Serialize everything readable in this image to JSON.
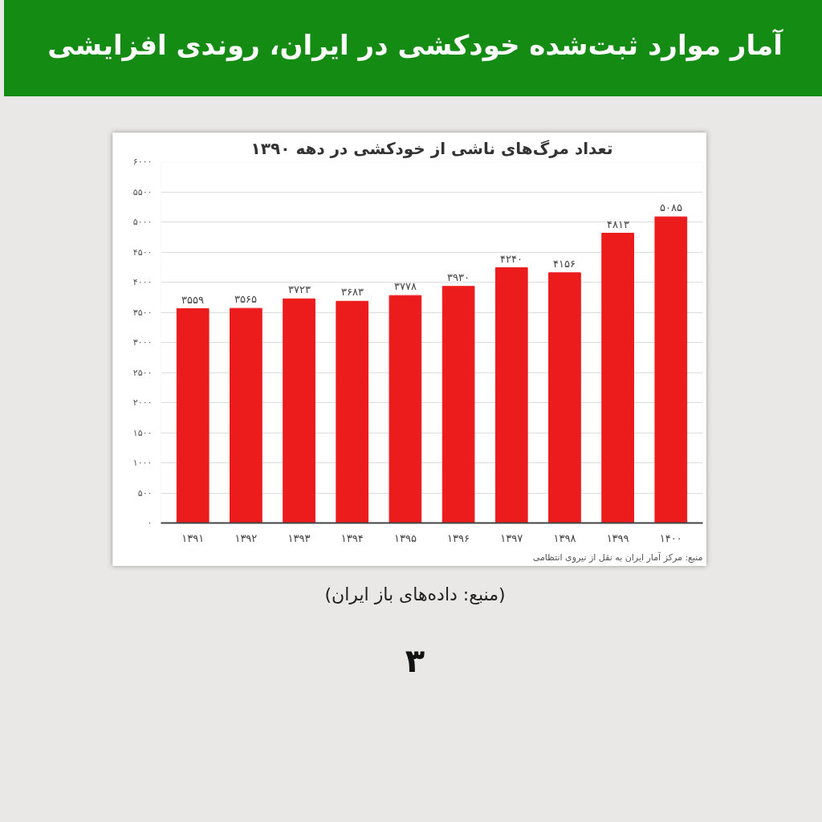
{
  "chart_data": {
    "type": "bar",
    "title": "آمار موارد ثبت‌شده خودکشی در ایران، روندی افزایشی",
    "subtitle": "تعداد مرگ‌های ناشی از خودکشی در دهه ۱۳۹۰",
    "categories": [
      "۱۳۹۱",
      "۱۳۹۲",
      "۱۳۹۳",
      "۱۳۹۴",
      "۱۳۹۵",
      "۱۳۹۶",
      "۱۳۹۷",
      "۱۳۹۸",
      "۱۳۹۹",
      "۱۴۰۰"
    ],
    "values": [
      3559,
      3565,
      3723,
      3683,
      3778,
      3930,
      4240,
      4156,
      4813,
      5085
    ],
    "value_labels": [
      "۳۵۵۹",
      "۳۵۶۵",
      "۳۷۲۳",
      "۳۶۸۳",
      "۳۷۷۸",
      "۳۹۳۰",
      "۴۲۴۰",
      "۴۱۵۶",
      "۴۸۱۳",
      "۵۰۸۵"
    ],
    "color": "#ec1c1c",
    "ylim": [
      0,
      6000
    ],
    "yticks": [
      {
        "value": 0,
        "label": "۰"
      },
      {
        "value": 500,
        "label": "۵۰۰"
      },
      {
        "value": 1000,
        "label": "۱۰۰۰"
      },
      {
        "value": 1500,
        "label": "۱۵۰۰"
      },
      {
        "value": 2000,
        "label": "۲۰۰۰"
      },
      {
        "value": 2500,
        "label": "۲۵۰۰"
      },
      {
        "value": 3000,
        "label": "۳۰۰۰"
      },
      {
        "value": 3500,
        "label": "۳۵۰۰"
      },
      {
        "value": 4000,
        "label": "۴۰۰۰"
      },
      {
        "value": 4500,
        "label": "۴۵۰۰"
      },
      {
        "value": 5000,
        "label": "۵۰۰۰"
      },
      {
        "value": 5500,
        "label": "۵۵۰۰"
      },
      {
        "value": 6000,
        "label": "۶۰۰۰"
      }
    ],
    "grid": "y",
    "annotations": [
      "منبع: مرکز آمار ایران به نقل از نیروی انتظامی",
      "(منبع: داده‌های باز ایران)",
      "۳"
    ]
  }
}
